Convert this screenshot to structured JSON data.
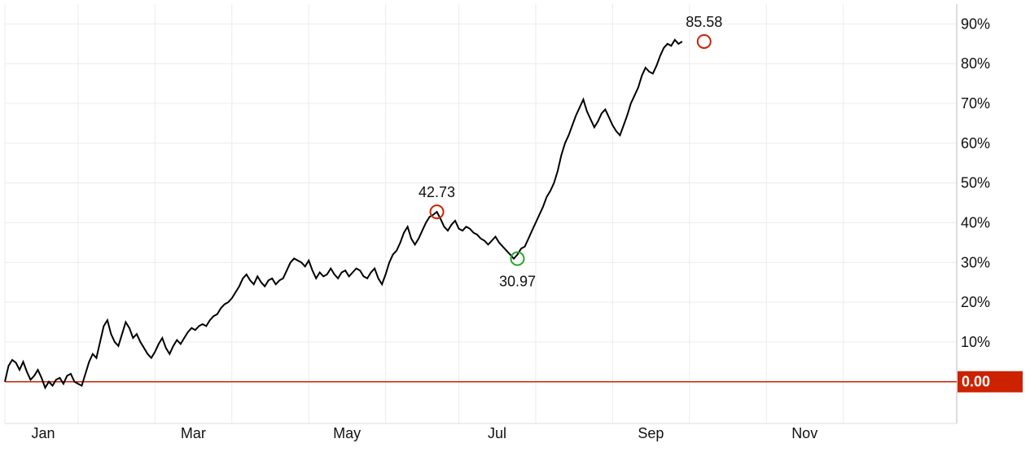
{
  "chart_data": {
    "type": "line",
    "x_labels": [
      "Jan",
      "Mar",
      "May",
      "Jul",
      "Sep",
      "Nov"
    ],
    "y_tick_labels": [
      "10%",
      "20%",
      "30%",
      "40%",
      "50%",
      "60%",
      "70%",
      "80%",
      "90%"
    ],
    "y_ticks": [
      10,
      20,
      30,
      40,
      50,
      60,
      70,
      80,
      90
    ],
    "ylim": [
      -10.5,
      95
    ],
    "xlim": [
      0,
      260
    ],
    "month_starts": [
      0,
      20,
      41,
      62,
      83,
      104,
      124,
      145,
      166,
      187,
      208,
      229
    ],
    "grid": true,
    "baseline": {
      "value": 0,
      "label": "0.00",
      "color": "#cc2200"
    },
    "line_color": "#000000",
    "series": [
      {
        "values": [
          0.0,
          4.0,
          5.5,
          4.8,
          3.0,
          5.0,
          2.5,
          0.5,
          1.5,
          3.0,
          1.0,
          -1.5,
          0.0,
          -1.0,
          0.5,
          1.0,
          -0.5,
          1.5,
          2.0,
          0.0,
          -0.5,
          -1.0,
          2.0,
          5.0,
          7.0,
          6.0,
          10.0,
          14.0,
          15.5,
          12.0,
          10.0,
          9.0,
          12.0,
          15.0,
          13.5,
          11.0,
          12.0,
          10.0,
          8.5,
          7.0,
          6.0,
          7.5,
          9.5,
          11.0,
          8.5,
          7.0,
          9.0,
          10.5,
          9.5,
          11.0,
          12.5,
          13.5,
          13.0,
          14.0,
          14.5,
          14.0,
          15.5,
          16.5,
          17.0,
          18.5,
          19.5,
          20.0,
          21.0,
          22.5,
          24.0,
          26.0,
          27.0,
          25.5,
          24.5,
          26.5,
          25.0,
          24.0,
          25.5,
          26.0,
          24.5,
          25.5,
          26.0,
          28.0,
          30.0,
          31.0,
          30.5,
          30.0,
          29.0,
          30.5,
          28.0,
          26.0,
          27.5,
          26.5,
          27.0,
          28.5,
          27.0,
          26.0,
          27.5,
          28.0,
          26.5,
          27.5,
          28.5,
          28.0,
          26.5,
          26.0,
          27.5,
          28.5,
          26.0,
          24.5,
          27.0,
          30.0,
          32.0,
          33.0,
          35.0,
          37.5,
          39.0,
          36.0,
          34.5,
          36.0,
          38.0,
          40.0,
          41.5,
          42.0,
          42.73,
          41.0,
          39.0,
          38.0,
          39.5,
          40.5,
          38.5,
          38.0,
          39.0,
          38.5,
          37.5,
          37.0,
          36.0,
          35.5,
          34.5,
          35.5,
          36.5,
          35.0,
          34.0,
          33.0,
          32.0,
          30.97,
          32.0,
          33.5,
          34.0,
          36.0,
          38.0,
          40.0,
          42.0,
          44.0,
          46.5,
          48.0,
          50.0,
          53.0,
          57.0,
          60.0,
          62.0,
          64.5,
          67.0,
          69.0,
          71.0,
          68.0,
          66.0,
          64.0,
          65.5,
          67.5,
          68.5,
          66.5,
          64.5,
          63.0,
          62.0,
          64.5,
          67.0,
          70.0,
          72.0,
          74.0,
          77.0,
          79.0,
          78.0,
          77.5,
          79.5,
          82.0,
          84.0,
          85.0,
          84.5,
          86.0,
          85.0,
          85.58
        ]
      }
    ],
    "annotations": [
      {
        "label": "42.73",
        "x": 118,
        "y": 42.73,
        "color": "#cc2200",
        "position": "above"
      },
      {
        "label": "30.97",
        "x": 140,
        "y": 30.97,
        "color": "#2aa52a",
        "position": "below"
      },
      {
        "label": "85.58",
        "x": 191,
        "y": 85.58,
        "color": "#cc2200",
        "position": "above"
      }
    ]
  }
}
